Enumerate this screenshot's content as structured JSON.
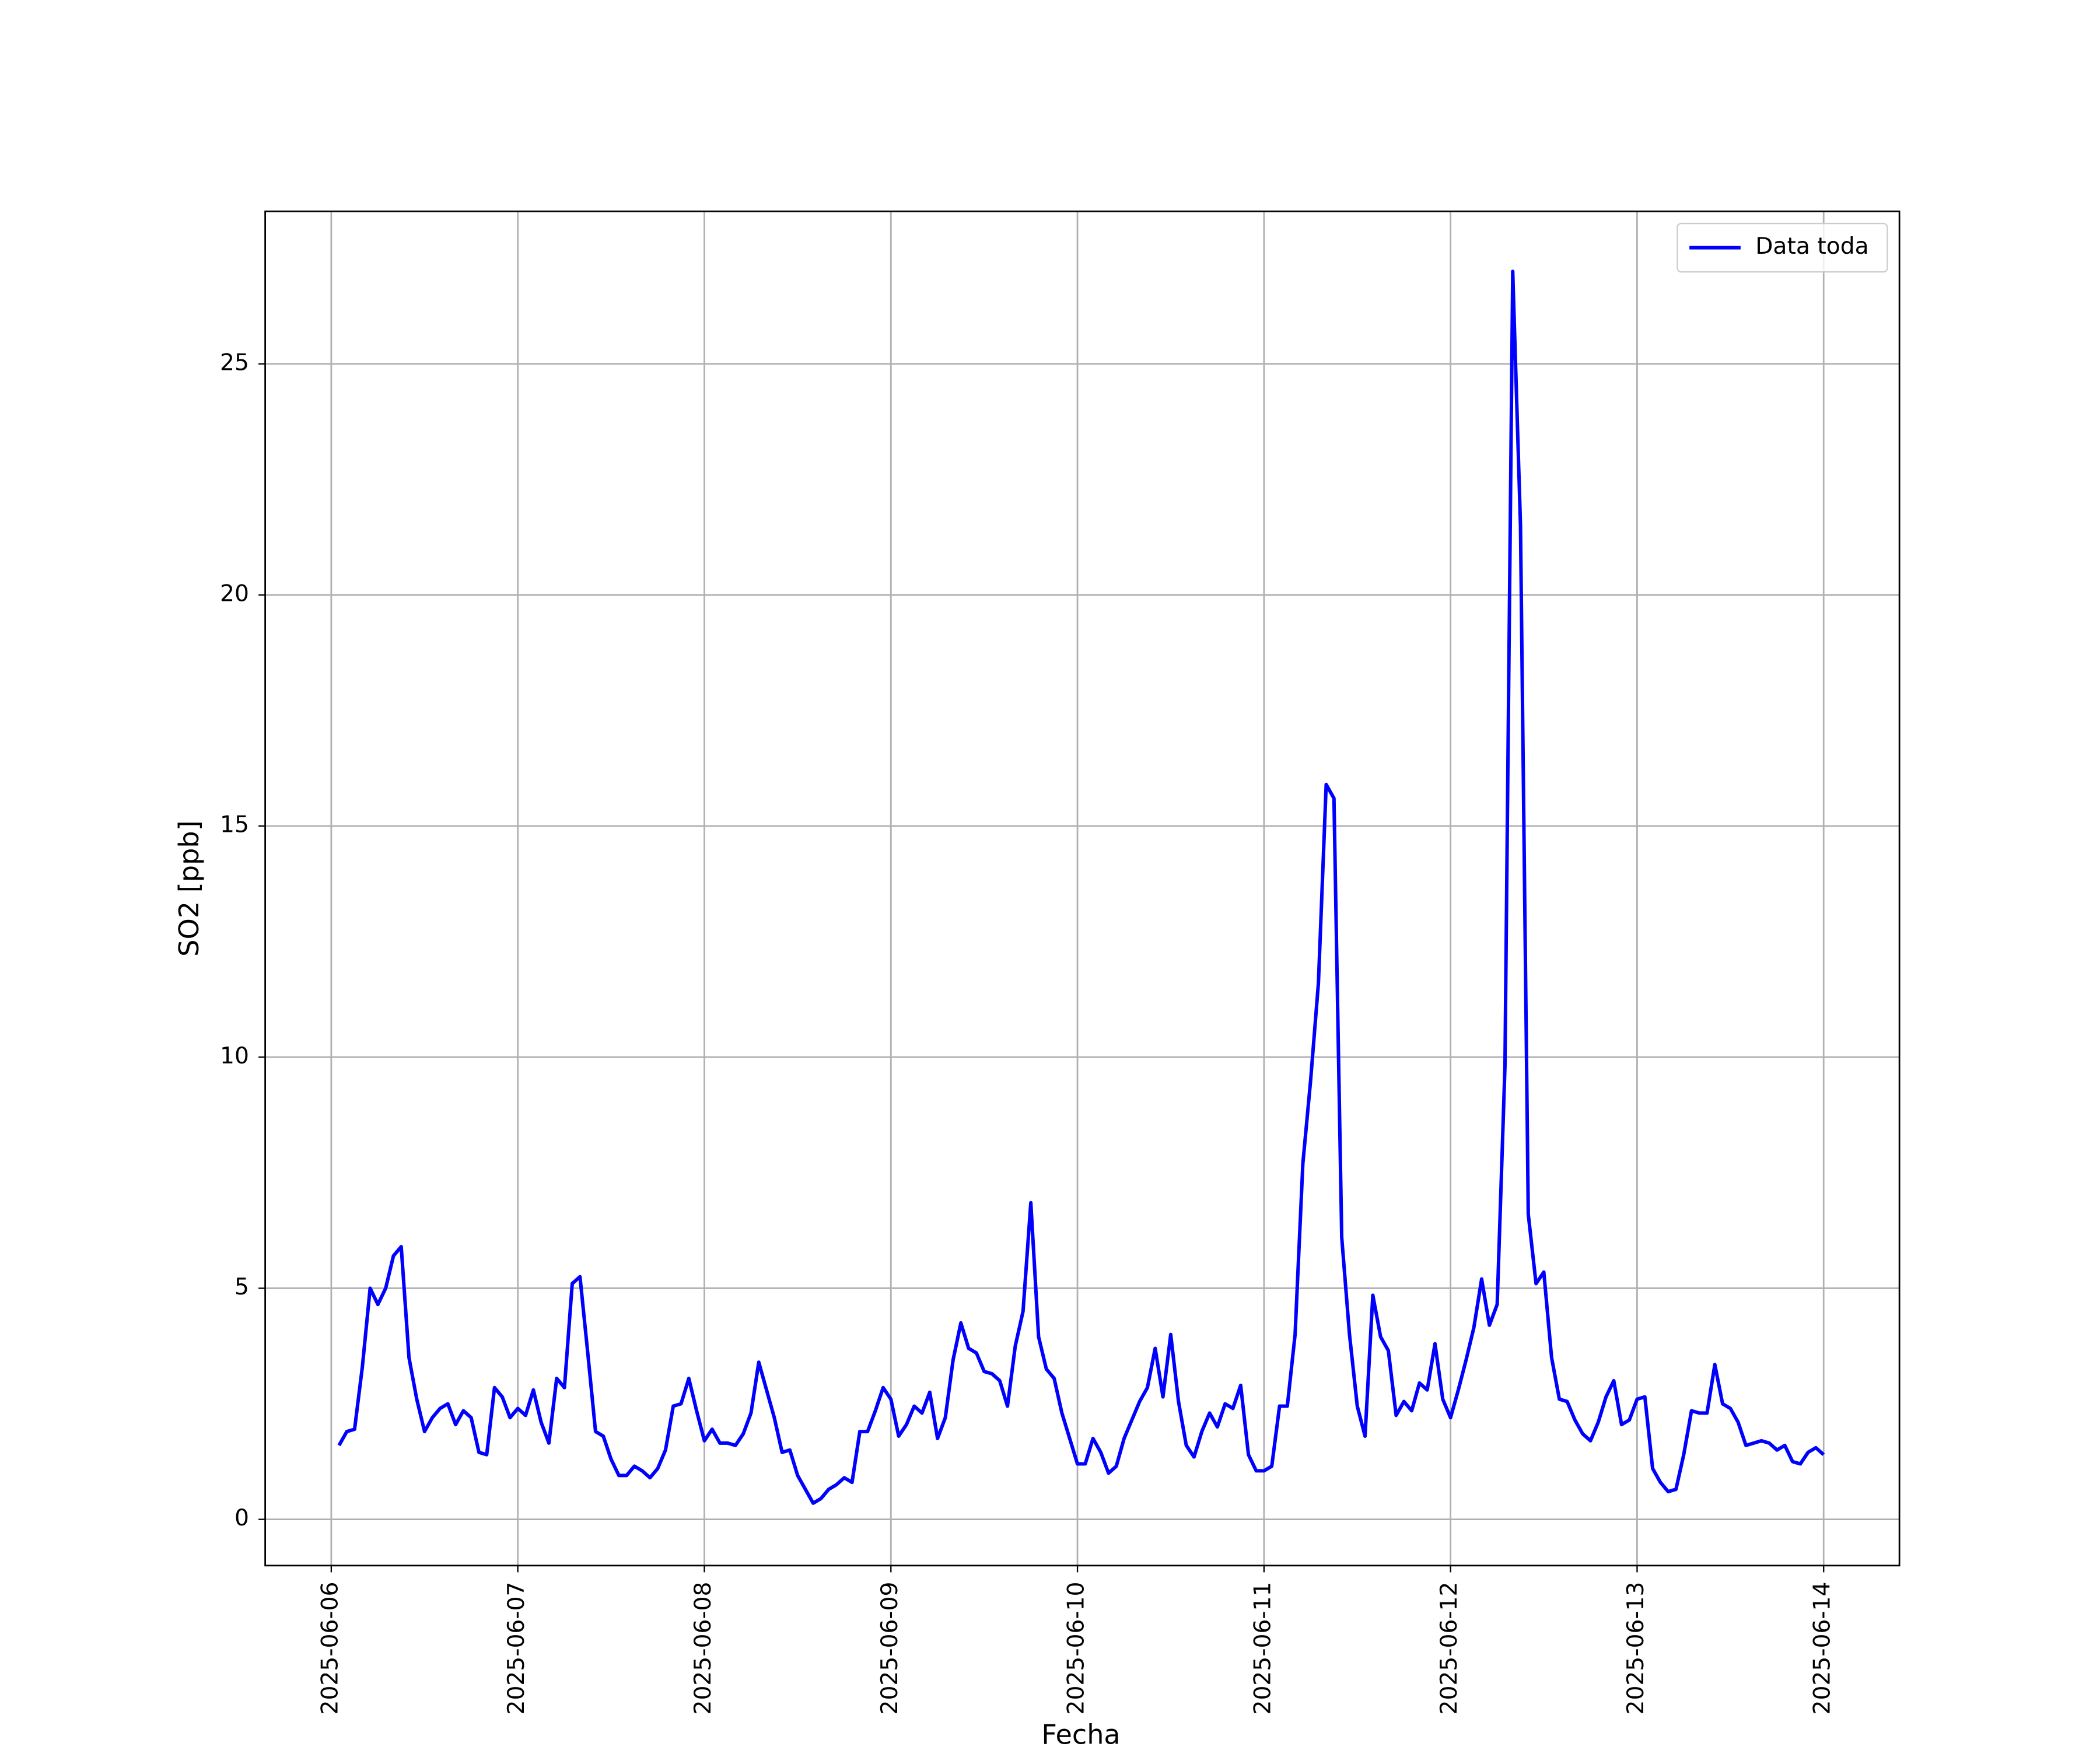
{
  "chart_data": {
    "type": "line",
    "xlabel": "Fecha",
    "ylabel": "SO2 [ppb]",
    "xlim": [
      "2025-06-05 15:30",
      "2025-06-14 09:45"
    ],
    "xticks": [
      "2025-06-06",
      "2025-06-07",
      "2025-06-08",
      "2025-06-09",
      "2025-06-10",
      "2025-06-11",
      "2025-06-12",
      "2025-06-13",
      "2025-06-14"
    ],
    "ylim": [
      -1,
      28.3
    ],
    "yticks": [
      0,
      5,
      10,
      15,
      20,
      25
    ],
    "grid": true,
    "legend": "upper right",
    "x": [
      "2025-06-06 01:00",
      "2025-06-06 02:00",
      "2025-06-06 03:00",
      "2025-06-06 04:00",
      "2025-06-06 05:00",
      "2025-06-06 06:00",
      "2025-06-06 07:00",
      "2025-06-06 08:00",
      "2025-06-06 09:00",
      "2025-06-06 10:00",
      "2025-06-06 11:00",
      "2025-06-06 12:00",
      "2025-06-06 13:00",
      "2025-06-06 14:00",
      "2025-06-06 15:00",
      "2025-06-06 16:00",
      "2025-06-06 17:00",
      "2025-06-06 18:00",
      "2025-06-06 19:00",
      "2025-06-06 20:00",
      "2025-06-06 21:00",
      "2025-06-06 22:00",
      "2025-06-06 23:00",
      "2025-06-07 00:00",
      "2025-06-07 01:00",
      "2025-06-07 02:00",
      "2025-06-07 03:00",
      "2025-06-07 04:00",
      "2025-06-07 05:00",
      "2025-06-07 06:00",
      "2025-06-07 07:00",
      "2025-06-07 08:00",
      "2025-06-07 09:00",
      "2025-06-07 10:00",
      "2025-06-07 11:00",
      "2025-06-07 12:00",
      "2025-06-07 13:00",
      "2025-06-07 14:00",
      "2025-06-07 15:00",
      "2025-06-07 16:00",
      "2025-06-07 17:00",
      "2025-06-07 18:00",
      "2025-06-07 19:00",
      "2025-06-07 20:00",
      "2025-06-07 21:00",
      "2025-06-07 22:00",
      "2025-06-07 23:00",
      "2025-06-08 00:00",
      "2025-06-08 01:00",
      "2025-06-08 02:00",
      "2025-06-08 03:00",
      "2025-06-08 04:00",
      "2025-06-08 05:00",
      "2025-06-08 06:00",
      "2025-06-08 07:00",
      "2025-06-08 08:00",
      "2025-06-08 09:00",
      "2025-06-08 10:00",
      "2025-06-08 11:00",
      "2025-06-08 12:00",
      "2025-06-08 13:00",
      "2025-06-08 14:00",
      "2025-06-08 15:00",
      "2025-06-08 16:00",
      "2025-06-08 17:00",
      "2025-06-08 18:00",
      "2025-06-08 19:00",
      "2025-06-08 20:00",
      "2025-06-08 21:00",
      "2025-06-08 22:00",
      "2025-06-08 23:00",
      "2025-06-09 00:00",
      "2025-06-09 01:00",
      "2025-06-09 02:00",
      "2025-06-09 03:00",
      "2025-06-09 04:00",
      "2025-06-09 05:00",
      "2025-06-09 06:00",
      "2025-06-09 07:00",
      "2025-06-09 08:00",
      "2025-06-09 09:00",
      "2025-06-09 10:00",
      "2025-06-09 11:00",
      "2025-06-09 12:00",
      "2025-06-09 13:00",
      "2025-06-09 14:00",
      "2025-06-09 15:00",
      "2025-06-09 16:00",
      "2025-06-09 17:00",
      "2025-06-09 18:00",
      "2025-06-09 19:00",
      "2025-06-09 20:00",
      "2025-06-09 21:00",
      "2025-06-09 22:00",
      "2025-06-09 23:00",
      "2025-06-10 00:00",
      "2025-06-10 01:00",
      "2025-06-10 02:00",
      "2025-06-10 03:00",
      "2025-06-10 04:00",
      "2025-06-10 05:00",
      "2025-06-10 06:00",
      "2025-06-10 07:00",
      "2025-06-10 08:00",
      "2025-06-10 09:00",
      "2025-06-10 10:00",
      "2025-06-10 11:00",
      "2025-06-10 12:00",
      "2025-06-10 13:00",
      "2025-06-10 14:00",
      "2025-06-10 15:00",
      "2025-06-10 16:00",
      "2025-06-10 17:00",
      "2025-06-10 18:00",
      "2025-06-10 19:00",
      "2025-06-10 20:00",
      "2025-06-10 21:00",
      "2025-06-10 22:00",
      "2025-06-10 23:00",
      "2025-06-11 00:00",
      "2025-06-11 01:00",
      "2025-06-11 02:00",
      "2025-06-11 03:00",
      "2025-06-11 04:00",
      "2025-06-11 05:00",
      "2025-06-11 06:00",
      "2025-06-11 07:00",
      "2025-06-11 08:00",
      "2025-06-11 09:00",
      "2025-06-11 10:00",
      "2025-06-11 11:00",
      "2025-06-11 12:00",
      "2025-06-11 13:00",
      "2025-06-11 14:00",
      "2025-06-11 15:00",
      "2025-06-11 16:00",
      "2025-06-11 17:00",
      "2025-06-11 18:00",
      "2025-06-11 19:00",
      "2025-06-11 20:00",
      "2025-06-11 21:00",
      "2025-06-11 22:00",
      "2025-06-11 23:00",
      "2025-06-12 00:00",
      "2025-06-12 01:00",
      "2025-06-12 02:00",
      "2025-06-12 03:00",
      "2025-06-12 04:00",
      "2025-06-12 05:00",
      "2025-06-12 06:00",
      "2025-06-12 07:00",
      "2025-06-12 08:00",
      "2025-06-12 09:00",
      "2025-06-12 10:00",
      "2025-06-12 11:00",
      "2025-06-12 12:00",
      "2025-06-12 13:00",
      "2025-06-12 14:00",
      "2025-06-12 15:00",
      "2025-06-12 16:00",
      "2025-06-12 17:00",
      "2025-06-12 18:00",
      "2025-06-12 19:00",
      "2025-06-12 20:00",
      "2025-06-12 21:00",
      "2025-06-12 22:00",
      "2025-06-12 23:00",
      "2025-06-13 00:00",
      "2025-06-13 01:00",
      "2025-06-13 02:00",
      "2025-06-13 03:00",
      "2025-06-13 04:00",
      "2025-06-13 05:00",
      "2025-06-13 06:00",
      "2025-06-13 07:00",
      "2025-06-13 08:00",
      "2025-06-13 09:00",
      "2025-06-13 10:00",
      "2025-06-13 11:00",
      "2025-06-13 12:00",
      "2025-06-13 13:00",
      "2025-06-13 14:00",
      "2025-06-13 15:00",
      "2025-06-13 16:00",
      "2025-06-13 17:00",
      "2025-06-13 18:00",
      "2025-06-13 19:00",
      "2025-06-13 20:00",
      "2025-06-13 21:00",
      "2025-06-13 22:00",
      "2025-06-13 23:00",
      "2025-06-14 00:00"
    ],
    "series": [
      {
        "name": "Data toda",
        "color": "#0000ff",
        "values": [
          1.6,
          1.9,
          1.95,
          3.3,
          5.0,
          4.65,
          5.0,
          5.7,
          5.9,
          3.5,
          2.6,
          1.9,
          2.2,
          2.4,
          2.5,
          2.05,
          2.35,
          2.2,
          1.45,
          1.4,
          2.85,
          2.65,
          2.2,
          2.4,
          2.25,
          2.8,
          2.1,
          1.65,
          3.05,
          2.85,
          5.1,
          5.25,
          3.6,
          1.9,
          1.8,
          1.3,
          0.95,
          0.95,
          1.15,
          1.05,
          0.9,
          1.1,
          1.5,
          2.45,
          2.5,
          3.05,
          2.35,
          1.7,
          1.95,
          1.65,
          1.65,
          1.6,
          1.85,
          2.3,
          3.4,
          2.8,
          2.2,
          1.45,
          1.5,
          0.95,
          0.65,
          0.35,
          0.45,
          0.65,
          0.75,
          0.9,
          0.8,
          1.9,
          1.9,
          2.35,
          2.85,
          2.6,
          1.8,
          2.05,
          2.45,
          2.3,
          2.75,
          1.75,
          2.2,
          3.45,
          4.25,
          3.7,
          3.6,
          3.2,
          3.15,
          3.0,
          2.45,
          3.75,
          4.5,
          6.85,
          3.95,
          3.25,
          3.05,
          2.3,
          1.75,
          1.2,
          1.2,
          1.75,
          1.45,
          1.0,
          1.15,
          1.75,
          2.15,
          2.55,
          2.85,
          3.7,
          2.65,
          4.0,
          2.55,
          1.6,
          1.35,
          1.9,
          2.3,
          2.0,
          2.5,
          2.4,
          2.9,
          1.4,
          1.05,
          1.05,
          1.15,
          2.45,
          2.45,
          4.0,
          7.7,
          9.5,
          11.6,
          15.9,
          15.6,
          6.1,
          4.0,
          2.45,
          1.8,
          4.85,
          3.95,
          3.65,
          2.25,
          2.55,
          2.35,
          2.95,
          2.8,
          3.8,
          2.6,
          2.2,
          2.8,
          3.45,
          4.15,
          5.2,
          4.2,
          4.65,
          9.8,
          27.0,
          21.5,
          6.6,
          5.1,
          5.35,
          3.5,
          2.6,
          2.55,
          2.15,
          1.85,
          1.7,
          2.1,
          2.65,
          3.0,
          2.05,
          2.15,
          2.6,
          2.65,
          1.1,
          0.8,
          0.6,
          0.65,
          1.4,
          2.35,
          2.3,
          2.3,
          3.35,
          2.5,
          2.4,
          2.1,
          1.6,
          1.65,
          1.7,
          1.65,
          1.5,
          1.6,
          1.25,
          1.2,
          1.45,
          1.55,
          1.4
        ]
      }
    ]
  }
}
